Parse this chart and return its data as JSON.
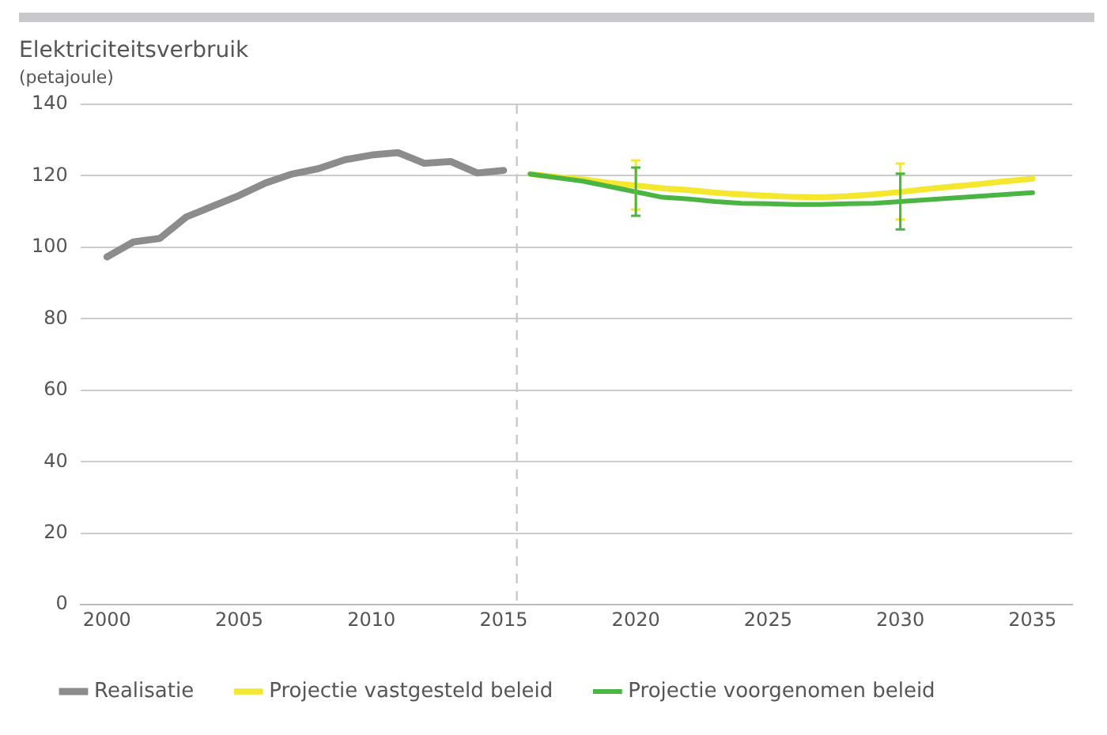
{
  "chart_data": {
    "type": "line",
    "title": "Elektriciteitsverbruik",
    "subtitle": "(petajoule)",
    "xlim": [
      1999,
      2036.5
    ],
    "xticks": [
      2000,
      2005,
      2010,
      2015,
      2020,
      2025,
      2030,
      2035
    ],
    "ylim": [
      0,
      140
    ],
    "yticks": [
      0,
      20,
      40,
      60,
      80,
      100,
      120,
      140
    ],
    "grid": "y",
    "legend": "bottom",
    "marker": "none",
    "line_style": "solid",
    "ref_lines": [
      {
        "axis": "x",
        "value": 2015.5,
        "color": "#c8c8c8",
        "line_style": "dashed"
      }
    ],
    "series": [
      {
        "name": "Realisatie",
        "color": "#8c8c8c",
        "x": [
          2000,
          2001,
          2002,
          2003,
          2004,
          2005,
          2006,
          2007,
          2008,
          2009,
          2010,
          2011,
          2012,
          2013,
          2014,
          2015
        ],
        "values": [
          97.3,
          101.5,
          102.5,
          108.5,
          111.5,
          114.5,
          118,
          120.5,
          122,
          124.5,
          125.8,
          126.5,
          123.5,
          124,
          120.8,
          121.5
        ]
      },
      {
        "name": "Projectie vastgesteld beleid",
        "color": "#f5e62e",
        "x": [
          2016,
          2017,
          2018,
          2019,
          2020,
          2021,
          2022,
          2023,
          2024,
          2025,
          2026,
          2027,
          2028,
          2029,
          2030,
          2031,
          2032,
          2033,
          2034,
          2035
        ],
        "values": [
          120.5,
          119.7,
          119,
          118,
          117.3,
          116.5,
          116,
          115.3,
          114.8,
          114.4,
          114.1,
          114,
          114.3,
          114.8,
          115.5,
          116.3,
          117,
          117.7,
          118.5,
          119.2
        ],
        "errors": [
          null,
          null,
          null,
          null,
          [
            110.6,
            124.3
          ],
          null,
          null,
          null,
          null,
          null,
          null,
          null,
          null,
          null,
          [
            107.8,
            123.4
          ],
          null,
          null,
          null,
          null,
          null
        ]
      },
      {
        "name": "Projectie voorgenomen beleid",
        "color": "#4bb543",
        "x": [
          2016,
          2017,
          2018,
          2019,
          2020,
          2021,
          2022,
          2023,
          2024,
          2025,
          2026,
          2027,
          2028,
          2029,
          2030,
          2031,
          2032,
          2033,
          2034,
          2035
        ],
        "values": [
          120.5,
          119.5,
          118.5,
          117,
          115.5,
          114,
          113.5,
          112.8,
          112.3,
          112.2,
          112,
          112,
          112.2,
          112.3,
          112.8,
          113.3,
          113.8,
          114.3,
          114.8,
          115.3
        ],
        "errors": [
          null,
          null,
          null,
          null,
          [
            108.8,
            122.3
          ],
          null,
          null,
          null,
          null,
          null,
          null,
          null,
          null,
          null,
          [
            105,
            120.6
          ],
          null,
          null,
          null,
          null,
          null
        ]
      }
    ]
  }
}
